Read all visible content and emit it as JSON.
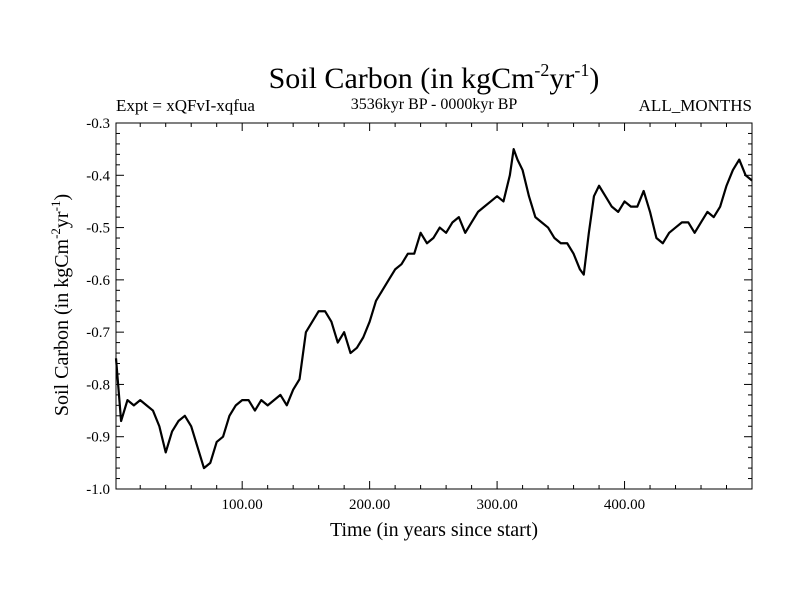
{
  "chart_data": {
    "type": "line",
    "title_main": "Soil Carbon (in kgCm",
    "title_sup1": "-2",
    "title_mid": "yr",
    "title_sup2": "-1",
    "title_end": ")",
    "subtitle_left": "Expt = xQFvI-xqfua",
    "subtitle_center": "3536kyr BP - 0000kyr BP",
    "subtitle_right": "ALL_MONTHS",
    "xlabel": "Time (in years since start)",
    "ylabel_main": "Soil Carbon (in kgCm",
    "ylabel_sup1": "-2",
    "ylabel_mid": "yr",
    "ylabel_sup2": "-1",
    "ylabel_end": ")",
    "xlim": [
      1,
      500
    ],
    "ylim": [
      -1.0,
      -0.3
    ],
    "xticks": [
      100,
      200,
      300,
      400
    ],
    "xtick_labels": [
      "100.00",
      "200.00",
      "300.00",
      "400.00"
    ],
    "yticks": [
      -1.0,
      -0.9,
      -0.8,
      -0.7,
      -0.6,
      -0.5,
      -0.4,
      -0.3
    ],
    "ytick_labels": [
      "-1.0",
      "-0.9",
      "-0.8",
      "-0.7",
      "-0.6",
      "-0.5",
      "-0.4",
      "-0.3"
    ],
    "series": [
      {
        "name": "Soil Carbon",
        "color": "#000000",
        "x": [
          1,
          5,
          10,
          15,
          20,
          25,
          30,
          35,
          40,
          45,
          50,
          55,
          60,
          65,
          70,
          75,
          80,
          85,
          90,
          95,
          100,
          105,
          110,
          115,
          120,
          125,
          130,
          135,
          140,
          145,
          150,
          155,
          160,
          165,
          170,
          175,
          180,
          185,
          190,
          195,
          200,
          205,
          210,
          215,
          220,
          225,
          230,
          235,
          240,
          245,
          250,
          255,
          260,
          265,
          270,
          275,
          280,
          285,
          290,
          295,
          300,
          305,
          310,
          313,
          316,
          320,
          325,
          330,
          335,
          340,
          345,
          350,
          355,
          360,
          365,
          368,
          372,
          376,
          380,
          385,
          390,
          395,
          400,
          405,
          410,
          415,
          420,
          425,
          430,
          435,
          440,
          445,
          450,
          455,
          460,
          465,
          470,
          475,
          480,
          485,
          490,
          495,
          500
        ],
        "values": [
          -0.75,
          -0.87,
          -0.83,
          -0.84,
          -0.83,
          -0.84,
          -0.85,
          -0.88,
          -0.93,
          -0.89,
          -0.87,
          -0.86,
          -0.88,
          -0.92,
          -0.96,
          -0.95,
          -0.91,
          -0.9,
          -0.86,
          -0.84,
          -0.83,
          -0.83,
          -0.85,
          -0.83,
          -0.84,
          -0.83,
          -0.82,
          -0.84,
          -0.81,
          -0.79,
          -0.7,
          -0.68,
          -0.66,
          -0.66,
          -0.68,
          -0.72,
          -0.7,
          -0.74,
          -0.73,
          -0.71,
          -0.68,
          -0.64,
          -0.62,
          -0.6,
          -0.58,
          -0.57,
          -0.55,
          -0.55,
          -0.51,
          -0.53,
          -0.52,
          -0.5,
          -0.51,
          -0.49,
          -0.48,
          -0.51,
          -0.49,
          -0.47,
          -0.46,
          -0.45,
          -0.44,
          -0.45,
          -0.4,
          -0.35,
          -0.37,
          -0.39,
          -0.44,
          -0.48,
          -0.49,
          -0.5,
          -0.52,
          -0.53,
          -0.53,
          -0.55,
          -0.58,
          -0.59,
          -0.51,
          -0.44,
          -0.42,
          -0.44,
          -0.46,
          -0.47,
          -0.45,
          -0.46,
          -0.46,
          -0.43,
          -0.47,
          -0.52,
          -0.53,
          -0.51,
          -0.5,
          -0.49,
          -0.49,
          -0.51,
          -0.49,
          -0.47,
          -0.48,
          -0.46,
          -0.42,
          -0.39,
          -0.37,
          -0.4,
          -0.41
        ]
      }
    ]
  }
}
